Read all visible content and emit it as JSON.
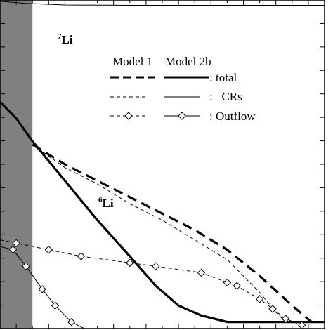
{
  "chart_data": {
    "type": "line",
    "title": "",
    "xlabel": "",
    "ylabel": "",
    "shaded_band": {
      "x_from": 0,
      "x_to": 0.1
    },
    "annotations": [
      {
        "text_main": "Li",
        "superscript": "7"
      },
      {
        "text_main": "Li",
        "superscript": "6"
      }
    ],
    "legend": {
      "columns": [
        "Model 1",
        "Model 2b"
      ],
      "rows": [
        ": total",
        ":   CRs",
        ": Outflow"
      ],
      "placement": "top-right"
    },
    "x_range": [
      0,
      1
    ],
    "y_range": [
      0,
      1
    ],
    "series": [
      {
        "name": "total",
        "model": "Model 1",
        "style": "thick-dashed",
        "points": [
          [
            0.1,
            0.56
          ],
          [
            0.2,
            0.5
          ],
          [
            0.3,
            0.45
          ],
          [
            0.4,
            0.4
          ],
          [
            0.5,
            0.35
          ],
          [
            0.6,
            0.3
          ],
          [
            0.7,
            0.24
          ],
          [
            0.8,
            0.16
          ],
          [
            0.9,
            0.07
          ],
          [
            0.96,
            0.02
          ]
        ]
      },
      {
        "name": "CRs",
        "model": "Model 1",
        "style": "thin-dashed",
        "points": [
          [
            0.1,
            0.56
          ],
          [
            0.2,
            0.49
          ],
          [
            0.3,
            0.44
          ],
          [
            0.4,
            0.38
          ],
          [
            0.5,
            0.33
          ],
          [
            0.6,
            0.27
          ],
          [
            0.7,
            0.21
          ],
          [
            0.8,
            0.11
          ],
          [
            0.85,
            0.05
          ],
          [
            0.88,
            0.02
          ]
        ]
      },
      {
        "name": "Outflow",
        "model": "Model 1",
        "style": "thin-dashed-diamond",
        "points": [
          [
            0.0,
            0.27
          ],
          [
            0.05,
            0.26
          ],
          [
            0.15,
            0.24
          ],
          [
            0.25,
            0.22
          ],
          [
            0.4,
            0.2
          ],
          [
            0.48,
            0.19
          ],
          [
            0.62,
            0.17
          ],
          [
            0.7,
            0.14
          ],
          [
            0.73,
            0.13
          ],
          [
            0.8,
            0.09
          ],
          [
            0.84,
            0.06
          ],
          [
            0.88,
            0.03
          ],
          [
            0.93,
            0.01
          ]
        ]
      },
      {
        "name": "total",
        "model": "Model 2b",
        "style": "thick-solid",
        "points": [
          [
            0.0,
            0.69
          ],
          [
            0.05,
            0.64
          ],
          [
            0.1,
            0.57
          ],
          [
            0.2,
            0.45
          ],
          [
            0.3,
            0.33
          ],
          [
            0.4,
            0.22
          ],
          [
            0.48,
            0.13
          ],
          [
            0.55,
            0.07
          ],
          [
            0.62,
            0.04
          ],
          [
            0.7,
            0.02
          ],
          [
            0.8,
            0.02
          ],
          [
            1.0,
            0.02
          ]
        ]
      },
      {
        "name": "CRs",
        "model": "Model 2b",
        "style": "thin-solid",
        "points": [
          [
            0.0,
            0.996
          ],
          [
            0.08,
            0.99
          ],
          [
            0.2,
            0.985
          ],
          [
            0.4,
            0.984
          ],
          [
            0.6,
            0.984
          ],
          [
            0.8,
            0.984
          ],
          [
            1.0,
            0.984
          ]
        ]
      },
      {
        "name": "Outflow",
        "model": "Model 2b",
        "style": "thin-solid-diamond",
        "points": [
          [
            0.0,
            0.25
          ],
          [
            0.04,
            0.24
          ],
          [
            0.08,
            0.19
          ],
          [
            0.13,
            0.12
          ],
          [
            0.17,
            0.07
          ],
          [
            0.22,
            0.02
          ],
          [
            0.26,
            0.0
          ]
        ]
      }
    ]
  }
}
